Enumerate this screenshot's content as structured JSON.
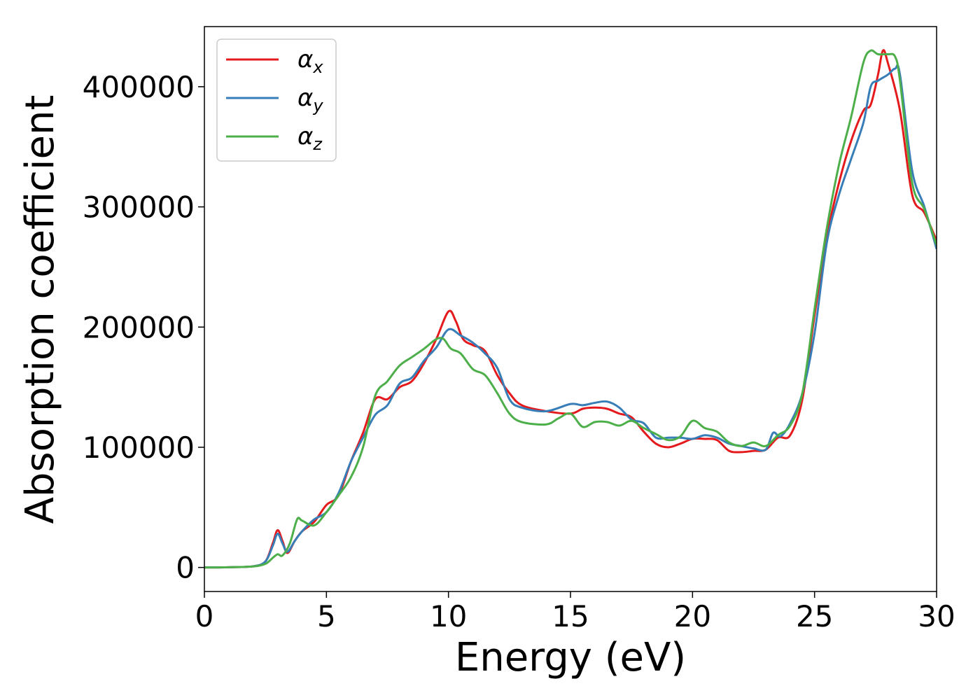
{
  "chart_data": {
    "type": "line",
    "xlabel": "Energy (eV)",
    "ylabel": "Absorption coefficient",
    "xlim": [
      0,
      30
    ],
    "ylim": [
      -20000,
      450000
    ],
    "xticks": [
      0,
      5,
      10,
      15,
      20,
      25,
      30
    ],
    "xtick_labels": [
      "0",
      "5",
      "10",
      "15",
      "20",
      "25",
      "30"
    ],
    "yticks": [
      0,
      100000,
      200000,
      300000,
      400000
    ],
    "ytick_labels": [
      "0",
      "100000",
      "200000",
      "300000",
      "400000"
    ],
    "grid": false,
    "legend_position": "top-left",
    "series": [
      {
        "name": "αx",
        "symbol": "α",
        "subscript": "x",
        "color": "#e41a1c",
        "x": [
          0,
          1,
          2,
          2.5,
          2.8,
          3.0,
          3.2,
          3.4,
          3.7,
          4.0,
          4.5,
          5.0,
          5.5,
          6.0,
          6.5,
          7.0,
          7.5,
          8.0,
          8.5,
          9.0,
          9.5,
          10.0,
          10.3,
          10.6,
          11.0,
          11.5,
          12.0,
          12.5,
          13.0,
          14.0,
          15.0,
          15.5,
          16.0,
          16.5,
          17.0,
          17.5,
          18.0,
          18.5,
          19.0,
          19.5,
          20.0,
          20.5,
          21.0,
          21.5,
          22.0,
          22.5,
          23.0,
          23.5,
          24.0,
          24.5,
          25.0,
          25.5,
          26.0,
          26.5,
          27.0,
          27.3,
          27.6,
          27.8,
          28.0,
          28.5,
          29.0,
          29.5,
          30.0
        ],
        "y": [
          0,
          200,
          1000,
          5000,
          20000,
          31000,
          22000,
          12000,
          22000,
          30000,
          38000,
          52000,
          60000,
          88000,
          112000,
          140000,
          140000,
          150000,
          155000,
          170000,
          190000,
          213000,
          205000,
          190000,
          185000,
          180000,
          160000,
          145000,
          135000,
          130000,
          128000,
          132000,
          133000,
          132000,
          128000,
          125000,
          113000,
          103000,
          100000,
          103000,
          107000,
          107000,
          106000,
          97000,
          96000,
          97000,
          98000,
          108000,
          110000,
          140000,
          210000,
          275000,
          320000,
          355000,
          380000,
          385000,
          410000,
          430000,
          420000,
          380000,
          310000,
          295000,
          272000
        ]
      },
      {
        "name": "αy",
        "symbol": "α",
        "subscript": "y",
        "color": "#377eb8",
        "x": [
          0,
          1,
          2,
          2.5,
          2.8,
          3.0,
          3.2,
          3.4,
          3.7,
          4.0,
          4.5,
          5.0,
          5.5,
          6.0,
          6.5,
          7.0,
          7.5,
          8.0,
          8.5,
          9.0,
          9.5,
          10.0,
          10.5,
          11.0,
          11.5,
          12.0,
          12.5,
          13.0,
          14.0,
          15.0,
          15.5,
          16.0,
          16.5,
          17.0,
          17.5,
          18.0,
          18.5,
          19.0,
          19.5,
          20.0,
          20.5,
          21.0,
          21.5,
          22.0,
          22.5,
          23.0,
          23.3,
          23.6,
          24.0,
          24.5,
          25.0,
          25.5,
          26.0,
          26.5,
          27.0,
          27.3,
          27.6,
          28.0,
          28.3,
          28.5,
          29.0,
          29.5,
          30.0
        ],
        "y": [
          0,
          200,
          1000,
          5000,
          18000,
          28000,
          20000,
          13000,
          22000,
          30000,
          40000,
          46000,
          62000,
          88000,
          108000,
          127000,
          135000,
          153000,
          158000,
          172000,
          183000,
          198000,
          193000,
          187000,
          178000,
          166000,
          140000,
          133000,
          130000,
          136000,
          135000,
          137000,
          138000,
          133000,
          123000,
          120000,
          108000,
          108000,
          108000,
          107000,
          110000,
          108000,
          103000,
          101000,
          99000,
          98000,
          112000,
          109000,
          120000,
          145000,
          195000,
          270000,
          310000,
          340000,
          370000,
          400000,
          405000,
          410000,
          415000,
          410000,
          330000,
          300000,
          265000
        ]
      },
      {
        "name": "αz",
        "symbol": "α",
        "subscript": "z",
        "color": "#4daf4a",
        "x": [
          0,
          1,
          2,
          2.5,
          2.8,
          3.0,
          3.2,
          3.5,
          3.8,
          4.0,
          4.5,
          5.0,
          5.5,
          6.0,
          6.5,
          7.0,
          7.5,
          8.0,
          8.5,
          9.0,
          9.5,
          9.8,
          10.1,
          10.5,
          11.0,
          11.5,
          12.0,
          12.5,
          13.0,
          14.0,
          14.5,
          15.0,
          15.5,
          16.0,
          16.5,
          17.0,
          17.5,
          18.0,
          18.5,
          19.0,
          19.5,
          20.0,
          20.5,
          21.0,
          21.5,
          22.0,
          22.5,
          23.0,
          23.5,
          24.0,
          24.5,
          25.0,
          25.5,
          26.0,
          26.5,
          27.0,
          27.3,
          27.6,
          28.0,
          28.3,
          28.5,
          29.0,
          29.5,
          30.0
        ],
        "y": [
          0,
          200,
          800,
          3000,
          8000,
          11000,
          10000,
          20000,
          40000,
          39000,
          35000,
          46000,
          60000,
          75000,
          100000,
          143000,
          155000,
          168000,
          175000,
          182000,
          190000,
          190000,
          182000,
          178000,
          165000,
          160000,
          145000,
          128000,
          121000,
          119000,
          124000,
          128000,
          117000,
          121000,
          121000,
          118000,
          122000,
          116000,
          111000,
          106000,
          109000,
          122000,
          116000,
          113000,
          104000,
          101000,
          104000,
          101000,
          110000,
          118000,
          145000,
          215000,
          282000,
          335000,
          375000,
          420000,
          430000,
          427000,
          427000,
          425000,
          405000,
          320000,
          298000,
          268000
        ]
      }
    ]
  }
}
